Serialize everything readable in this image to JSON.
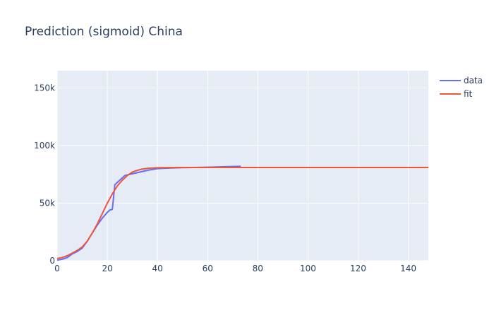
{
  "chart_data": {
    "type": "line",
    "title": "Prediction (sigmoid) China",
    "xlabel": "",
    "ylabel": "",
    "xlim": [
      0,
      148
    ],
    "ylim": [
      0,
      165000
    ],
    "x_ticks": [
      0,
      20,
      40,
      60,
      80,
      100,
      120,
      140
    ],
    "x_tick_labels": [
      "0",
      "20",
      "40",
      "60",
      "80",
      "100",
      "120",
      "140"
    ],
    "y_ticks": [
      0,
      50000,
      100000,
      150000
    ],
    "y_tick_labels": [
      "0",
      "50k",
      "100k",
      "150k"
    ],
    "grid": true,
    "legend_position": "top-right",
    "colors": {
      "plot_bg": "#e5ecf6",
      "grid": "#ffffff",
      "text": "#2a3f5f"
    },
    "series": [
      {
        "name": "data",
        "color": "#636efa",
        "x": [
          0,
          2,
          4,
          6,
          8,
          10,
          12,
          14,
          16,
          18,
          20,
          21,
          22,
          23,
          25,
          27,
          30,
          33,
          36,
          40,
          45,
          50,
          55,
          60,
          65,
          70,
          73
        ],
        "y": [
          550,
          1300,
          2800,
          5900,
          8000,
          11000,
          17000,
          24000,
          31000,
          37000,
          42000,
          44000,
          44600,
          66000,
          70000,
          74000,
          75500,
          77000,
          78500,
          80000,
          80500,
          80800,
          81000,
          81200,
          81500,
          81800,
          82000
        ]
      },
      {
        "name": "fit",
        "color": "#ef553b",
        "x": [
          0,
          2,
          4,
          6,
          8,
          10,
          12,
          14,
          16,
          18,
          20,
          22,
          24,
          26,
          28,
          30,
          32,
          34,
          36,
          38,
          40,
          44,
          50,
          60,
          80,
          100,
          120,
          148
        ],
        "y": [
          2000,
          2800,
          4400,
          6600,
          9000,
          12000,
          17000,
          24000,
          32000,
          41000,
          50000,
          58000,
          65000,
          70000,
          74000,
          77000,
          78500,
          79600,
          80200,
          80500,
          80700,
          80900,
          81000,
          81000,
          81000,
          81000,
          81000,
          81000
        ]
      }
    ]
  }
}
